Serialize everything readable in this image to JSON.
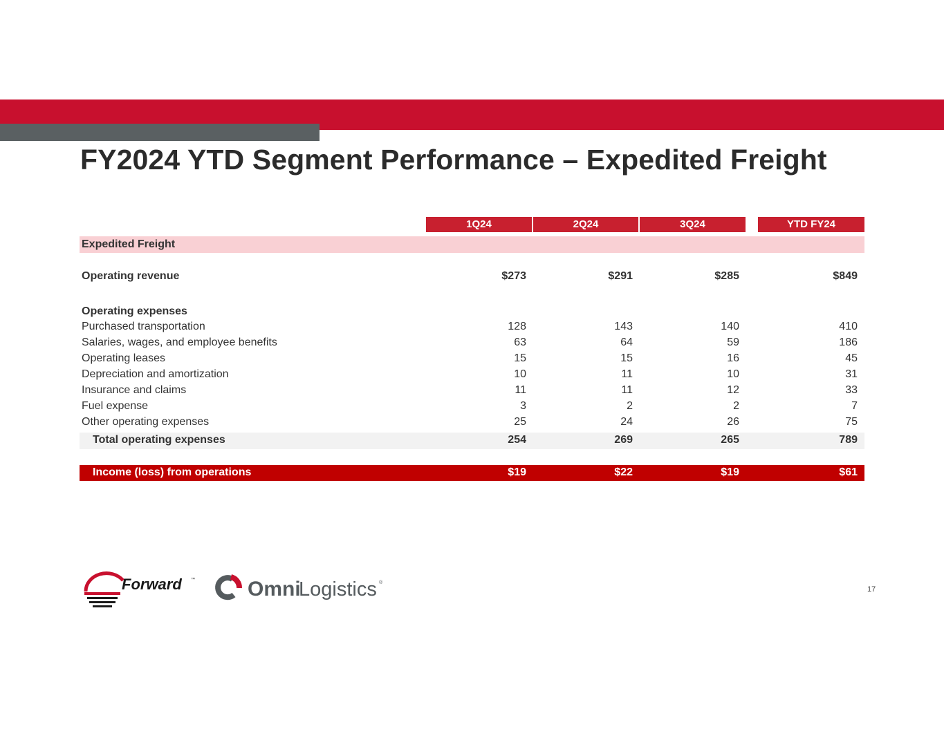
{
  "title": "FY2024 YTD Segment Performance – Expedited Freight",
  "columns": [
    "1Q24",
    "2Q24",
    "3Q24",
    "YTD FY24"
  ],
  "section": "Expedited Freight",
  "revenue": {
    "label": "Operating revenue",
    "values": [
      "$273",
      "$291",
      "$285",
      "$849"
    ]
  },
  "expenses_heading": "Operating expenses",
  "expenses": [
    {
      "label": "Purchased transportation",
      "values": [
        "128",
        "143",
        "140",
        "410"
      ]
    },
    {
      "label": "Salaries, wages, and employee benefits",
      "values": [
        "63",
        "64",
        "59",
        "186"
      ]
    },
    {
      "label": "Operating leases",
      "values": [
        "15",
        "15",
        "16",
        "45"
      ]
    },
    {
      "label": "Depreciation and amortization",
      "values": [
        "10",
        "11",
        "10",
        "31"
      ]
    },
    {
      "label": "Insurance and claims",
      "values": [
        "11",
        "11",
        "12",
        "33"
      ]
    },
    {
      "label": "Fuel expense",
      "values": [
        "3",
        "2",
        "2",
        "7"
      ]
    },
    {
      "label": "Other operating expenses",
      "values": [
        "25",
        "24",
        "26",
        "75"
      ]
    }
  ],
  "total": {
    "label": "Total operating expenses",
    "values": [
      "254",
      "269",
      "265",
      "789"
    ]
  },
  "income": {
    "label": "Income (loss) from operations",
    "values": [
      "$19",
      "$22",
      "$19",
      "$61"
    ]
  },
  "logos": {
    "forward": "Forward",
    "forward_tm": "™",
    "omni_bold": "Omni",
    "omni_light": "Logistics",
    "omni_reg": "®"
  },
  "page_number": "17",
  "colors": {
    "brand_red": "#c8102e",
    "grey": "#5a6062",
    "income_red": "#c00000",
    "section_pink": "#f9d0d4"
  }
}
